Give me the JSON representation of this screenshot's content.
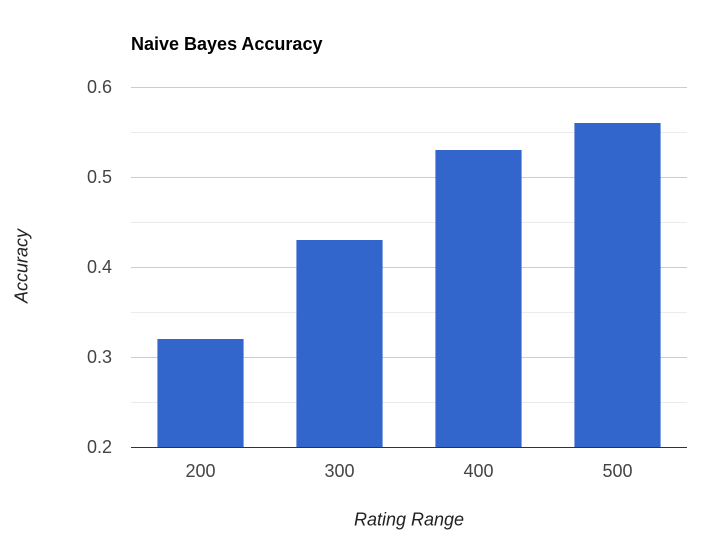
{
  "chart_data": {
    "type": "bar",
    "title": "Naive Bayes Accuracy",
    "xlabel": "Rating Range",
    "ylabel": "Accuracy",
    "categories": [
      "200",
      "300",
      "400",
      "500"
    ],
    "values": [
      0.32,
      0.43,
      0.53,
      0.56
    ],
    "ylim": [
      0.2,
      0.6
    ],
    "yticks": [
      "0.2",
      "0.3",
      "0.4",
      "0.5",
      "0.6"
    ],
    "grid": true,
    "bar_color": "#3366cc",
    "gridline_color": "#cccccc",
    "minor_gridline_color": "#ebebeb"
  }
}
